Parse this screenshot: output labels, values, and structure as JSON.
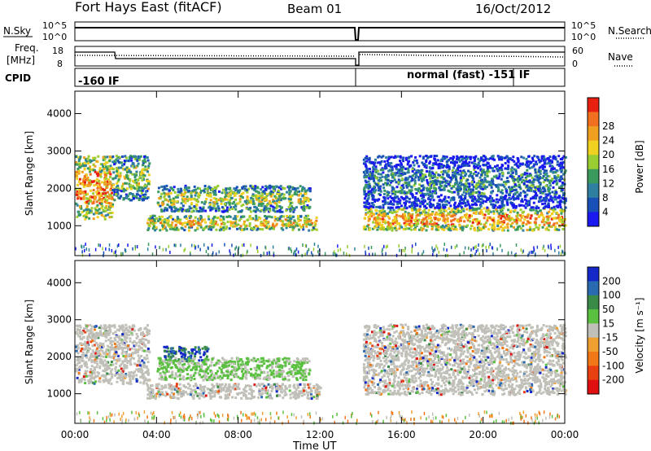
{
  "header": {
    "station": "Fort Hays East (fitACF)",
    "beam": "Beam 01",
    "date": "16/Oct/2012"
  },
  "top_panel": {
    "nsky_label": "N.Sky",
    "nsearch_label": "N.Search",
    "nsky_ticks": [
      "10^5",
      "10^0"
    ],
    "nsearch_ticks": [
      "10^5",
      "10^0"
    ],
    "freq_label_line1": "Freq.",
    "freq_label_line2": "[MHz]",
    "freq_ticks": [
      "18",
      "8"
    ],
    "nave_label": "Nave",
    "nave_ticks": [
      "60",
      "0"
    ],
    "cpid_label": "CPID",
    "cpid_left": "-160 IF",
    "cpid_right": "normal (fast) -151 IF"
  },
  "colors": {
    "power_scale": [
      "#1a1af0",
      "#1850b8",
      "#2e7fa0",
      "#3a9a5e",
      "#9acd32",
      "#f0d020",
      "#f0a020",
      "#f07020",
      "#e82010"
    ],
    "velocity_scale": [
      "#1428c8",
      "#2a6ab0",
      "#3a8a48",
      "#5ac040",
      "#c0c0b8",
      "#f0a030",
      "#f07818",
      "#e84010",
      "#e01010"
    ]
  },
  "chart_data": [
    {
      "type": "heatmap",
      "title": "Power",
      "ylabel": "Slant Range [km]",
      "xlabel": "Time UT",
      "x_ticks": [
        "00:00",
        "04:00",
        "08:00",
        "12:00",
        "16:00",
        "20:00",
        "00:00"
      ],
      "xlim_hours": [
        0,
        24
      ],
      "ylim": [
        200,
        4600
      ],
      "y_ticks": [
        1000,
        2000,
        3000,
        4000
      ],
      "colorbar_label": "Power [dB]",
      "colorbar_ticks": [
        4,
        8,
        12,
        16,
        20,
        24,
        28
      ],
      "features": [
        {
          "t_start": 0.0,
          "t_end": 1.8,
          "range_start": 1200,
          "range_end": 2900,
          "level": "high"
        },
        {
          "t_start": 1.8,
          "t_end": 3.6,
          "range_start": 1700,
          "range_end": 2900,
          "level": "mid"
        },
        {
          "t_start": 4.0,
          "t_end": 11.5,
          "range_start": 1400,
          "range_end": 2100,
          "level": "mid"
        },
        {
          "t_start": 3.5,
          "t_end": 11.8,
          "range_start": 900,
          "range_end": 1300,
          "level": "mid-high"
        },
        {
          "t_start": 14.1,
          "t_end": 24.0,
          "range_start": 900,
          "range_end": 1500,
          "level": "high"
        },
        {
          "t_start": 14.1,
          "t_end": 24.0,
          "range_start": 1500,
          "range_end": 2900,
          "level": "low-mid"
        }
      ]
    },
    {
      "type": "heatmap",
      "title": "Velocity",
      "ylabel": "Slant Range [km]",
      "xlabel": "Time UT",
      "x_ticks": [
        "00:00",
        "04:00",
        "08:00",
        "12:00",
        "16:00",
        "20:00",
        "00:00"
      ],
      "xlim_hours": [
        0,
        24
      ],
      "ylim": [
        200,
        4600
      ],
      "y_ticks": [
        1000,
        2000,
        3000,
        4000
      ],
      "colorbar_label": "Velocity [m s⁻¹]",
      "colorbar_ticks": [
        200,
        100,
        50,
        15,
        -15,
        -50,
        -100,
        -200
      ],
      "features": [
        {
          "t_start": 0.0,
          "t_end": 3.6,
          "range_start": 1300,
          "range_end": 2900,
          "level": "ground"
        },
        {
          "t_start": 4.3,
          "t_end": 6.5,
          "range_start": 1900,
          "range_end": 2300,
          "level": "positive"
        },
        {
          "t_start": 4.0,
          "t_end": 11.5,
          "range_start": 1400,
          "range_end": 2000,
          "level": "positive-low"
        },
        {
          "t_start": 3.5,
          "t_end": 12.0,
          "range_start": 900,
          "range_end": 1300,
          "level": "ground"
        },
        {
          "t_start": 14.1,
          "t_end": 24.0,
          "range_start": 1000,
          "range_end": 2900,
          "level": "ground"
        }
      ]
    }
  ]
}
